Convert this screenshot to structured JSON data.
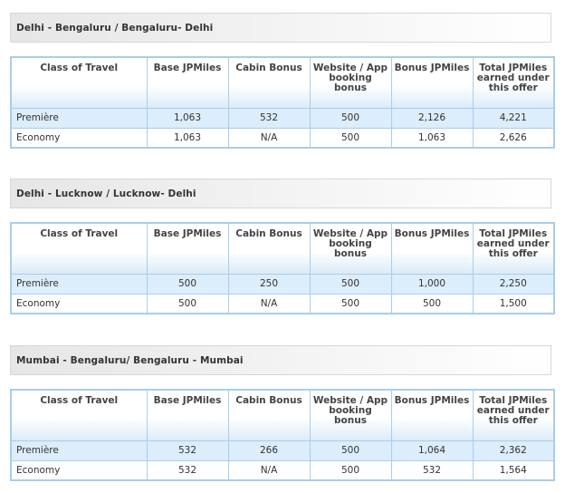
{
  "columns": [
    "Class of Travel",
    "Base JPMiles",
    "Cabin Bonus",
    "Website / App booking bonus",
    "Bonus JPMiles",
    "Total JPMiles earned under this offer"
  ],
  "sections": [
    {
      "route": "Delhi - Bengaluru / Bengaluru- Delhi",
      "rows": [
        [
          "Première",
          "1,063",
          "532",
          "500",
          "2,126",
          "4,221"
        ],
        [
          "Economy",
          "1,063",
          "N/A",
          "500",
          "1,063",
          "2,626"
        ]
      ]
    },
    {
      "route": "Delhi - Lucknow / Lucknow- Delhi",
      "rows": [
        [
          "Première",
          "500",
          "250",
          "500",
          "1,000",
          "2,250"
        ],
        [
          "Economy",
          "500",
          "N/A",
          "500",
          "500",
          "1,500"
        ]
      ]
    },
    {
      "route": "Mumbai - Bengaluru/ Bengaluru - Mumbai",
      "rows": [
        [
          "Première",
          "532",
          "266",
          "500",
          "1,064",
          "2,362"
        ],
        [
          "Economy",
          "532",
          "N/A",
          "500",
          "532",
          "1,564"
        ]
      ]
    }
  ]
}
